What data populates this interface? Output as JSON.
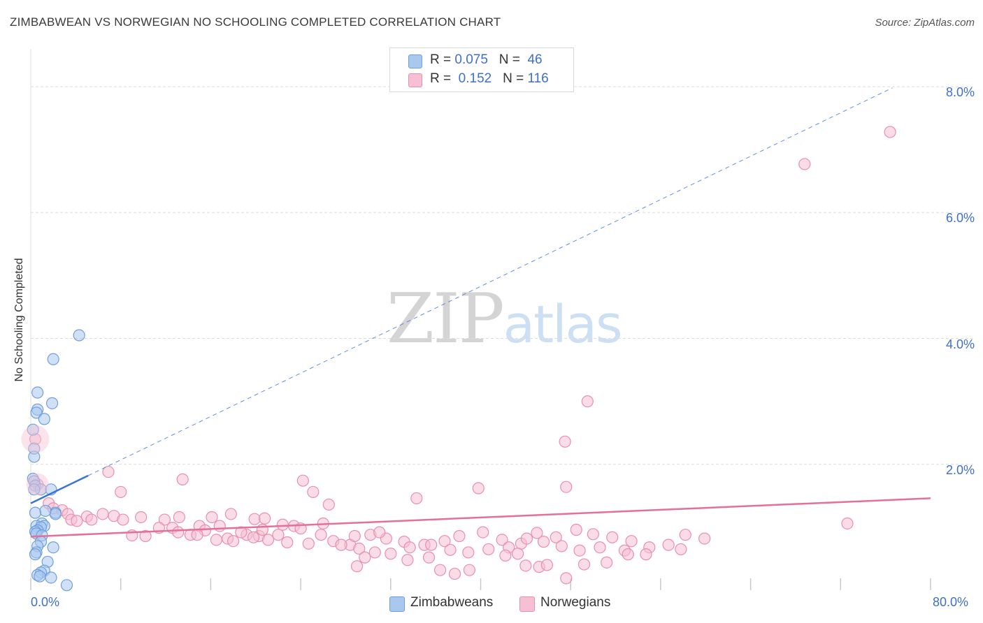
{
  "title": "ZIMBABWEAN VS NORWEGIAN NO SCHOOLING COMPLETED CORRELATION CHART",
  "source": "Source: ZipAtlas.com",
  "watermark": {
    "zip": "ZIP",
    "atlas": "atlas"
  },
  "legend": {
    "rows": [
      {
        "r_label": "R =",
        "r_value": "0.075",
        "n_label": "N =",
        "n_value": "46"
      },
      {
        "r_label": "R =",
        "r_value": "0.152",
        "n_label": "N =",
        "n_value": "116"
      }
    ]
  },
  "bottom_legend": [
    "Zimbabweans",
    "Norwegians"
  ],
  "colors": {
    "blue_fill": "#a9c8ef",
    "blue_stroke": "#6f9fdb",
    "blue_line": "#3a74d4",
    "pink_fill": "#f6c0d2",
    "pink_stroke": "#e98fae",
    "pink_line": "#e46f9b",
    "grid": "#dcdcdc",
    "tick_text": "#3e70c8"
  },
  "chart_data": {
    "type": "scatter",
    "title": "ZIMBABWEAN VS NORWEGIAN NO SCHOOLING COMPLETED CORRELATION CHART",
    "xlabel": "",
    "ylabel": "No Schooling Completed",
    "xlim": [
      0,
      80
    ],
    "ylim": [
      0,
      8.6
    ],
    "x_tick_labels": [
      "0.0%",
      "80.0%"
    ],
    "y_ticks": [
      2,
      4,
      6,
      8
    ],
    "y_tick_labels": [
      "2.0%",
      "4.0%",
      "6.0%",
      "8.0%"
    ],
    "grid": true,
    "series": [
      {
        "name": "Zimbabweans",
        "r": 0.075,
        "n": 46,
        "trend": {
          "x0": 0,
          "y0": 1.38,
          "x1": 5.1,
          "y1": 1.82,
          "dashed_to_x": 76.6,
          "dashed_to_y": 7.98
        },
        "points": [
          [
            4.3,
            4.05
          ],
          [
            2.0,
            3.67
          ],
          [
            0.6,
            3.14
          ],
          [
            1.9,
            2.97
          ],
          [
            0.6,
            2.87
          ],
          [
            0.5,
            2.82
          ],
          [
            1.2,
            2.72
          ],
          [
            0.2,
            2.55
          ],
          [
            0.3,
            2.25
          ],
          [
            0.3,
            2.12
          ],
          [
            0.2,
            1.77
          ],
          [
            0.3,
            1.73
          ],
          [
            0.4,
            1.66
          ],
          [
            0.9,
            1.6
          ],
          [
            1.8,
            1.6
          ],
          [
            0.3,
            1.6
          ],
          [
            2.2,
            1.23
          ],
          [
            2.2,
            1.21
          ],
          [
            1.3,
            1.26
          ],
          [
            0.4,
            1.23
          ],
          [
            1.0,
            1.06
          ],
          [
            0.5,
            1.02
          ],
          [
            1.2,
            1.02
          ],
          [
            0.9,
            1.0
          ],
          [
            0.6,
            0.95
          ],
          [
            0.4,
            0.93
          ],
          [
            0.5,
            0.9
          ],
          [
            1.0,
            0.87
          ],
          [
            0.9,
            0.77
          ],
          [
            0.6,
            0.7
          ],
          [
            2.0,
            0.68
          ],
          [
            0.5,
            0.6
          ],
          [
            0.4,
            0.57
          ],
          [
            1.5,
            0.45
          ],
          [
            1.2,
            0.31
          ],
          [
            0.9,
            0.28
          ],
          [
            0.6,
            0.24
          ],
          [
            0.8,
            0.22
          ],
          [
            1.8,
            0.2
          ],
          [
            3.2,
            0.08
          ]
        ]
      },
      {
        "name": "Norwegians",
        "r": 0.152,
        "n": 116,
        "trend": {
          "x0": 0,
          "y0": 0.85,
          "x1": 80,
          "y1": 1.46
        },
        "points": [
          [
            76.4,
            7.28
          ],
          [
            68.8,
            6.77
          ],
          [
            49.5,
            3.0
          ],
          [
            47.5,
            2.36
          ],
          [
            0.4,
            2.4
          ],
          [
            0.6,
            1.68
          ],
          [
            13.5,
            1.76
          ],
          [
            6.9,
            1.88
          ],
          [
            47.6,
            1.64
          ],
          [
            39.8,
            1.62
          ],
          [
            24.2,
            1.74
          ],
          [
            8.0,
            1.56
          ],
          [
            25.1,
            1.56
          ],
          [
            34.3,
            1.46
          ],
          [
            26.5,
            1.36
          ],
          [
            1.6,
            1.38
          ],
          [
            2.0,
            1.3
          ],
          [
            2.8,
            1.27
          ],
          [
            3.3,
            1.21
          ],
          [
            5.0,
            1.17
          ],
          [
            6.4,
            1.21
          ],
          [
            9.8,
            1.16
          ],
          [
            13.2,
            1.16
          ],
          [
            11.9,
            1.12
          ],
          [
            3.6,
            1.12
          ],
          [
            4.1,
            1.1
          ],
          [
            5.4,
            1.12
          ],
          [
            7.4,
            1.18
          ],
          [
            16.1,
            1.16
          ],
          [
            17.8,
            1.21
          ],
          [
            19.9,
            1.13
          ],
          [
            20.8,
            1.14
          ],
          [
            16.8,
            1.02
          ],
          [
            15.0,
            1.02
          ],
          [
            15.5,
            0.95
          ],
          [
            12.6,
            0.99
          ],
          [
            14.2,
            0.88
          ],
          [
            19.2,
            0.88
          ],
          [
            20.3,
            0.86
          ],
          [
            22.0,
            0.88
          ],
          [
            23.4,
            1.02
          ],
          [
            17.5,
            0.82
          ],
          [
            18.0,
            0.78
          ],
          [
            19.8,
            0.84
          ],
          [
            21.1,
            0.8
          ],
          [
            22.8,
            0.76
          ],
          [
            24.7,
            0.74
          ],
          [
            26.9,
            0.78
          ],
          [
            28.4,
            0.72
          ],
          [
            30.2,
            0.88
          ],
          [
            31.6,
            0.82
          ],
          [
            33.2,
            0.77
          ],
          [
            35.0,
            0.72
          ],
          [
            36.8,
            0.78
          ],
          [
            38.1,
            0.86
          ],
          [
            40.2,
            0.92
          ],
          [
            41.9,
            0.8
          ],
          [
            43.6,
            0.74
          ],
          [
            45.0,
            0.91
          ],
          [
            46.7,
            0.84
          ],
          [
            48.5,
            0.96
          ],
          [
            50.0,
            0.89
          ],
          [
            51.7,
            0.84
          ],
          [
            53.4,
            0.78
          ],
          [
            55.0,
            0.68
          ],
          [
            56.7,
            0.72
          ],
          [
            58.2,
            0.88
          ],
          [
            59.9,
            0.82
          ],
          [
            57.8,
            0.65
          ],
          [
            54.7,
            0.57
          ],
          [
            52.8,
            0.63
          ],
          [
            50.6,
            0.68
          ],
          [
            48.8,
            0.63
          ],
          [
            47.2,
            0.7
          ],
          [
            45.6,
            0.77
          ],
          [
            44.1,
            0.82
          ],
          [
            42.5,
            0.68
          ],
          [
            40.7,
            0.65
          ],
          [
            38.9,
            0.6
          ],
          [
            37.3,
            0.64
          ],
          [
            35.6,
            0.72
          ],
          [
            33.7,
            0.68
          ],
          [
            32.0,
            0.58
          ],
          [
            30.6,
            0.6
          ],
          [
            29.2,
            0.66
          ],
          [
            27.6,
            0.72
          ],
          [
            25.8,
            0.88
          ],
          [
            24.0,
            0.98
          ],
          [
            22.4,
            1.04
          ],
          [
            20.6,
            0.96
          ],
          [
            18.7,
            0.92
          ],
          [
            16.5,
            0.8
          ],
          [
            14.8,
            0.88
          ],
          [
            13.1,
            0.92
          ],
          [
            11.4,
            0.99
          ],
          [
            9.0,
            0.87
          ],
          [
            8.2,
            1.12
          ],
          [
            10.2,
            0.86
          ],
          [
            26.0,
            1.06
          ],
          [
            28.8,
            0.86
          ],
          [
            31.0,
            0.92
          ],
          [
            33.5,
            0.48
          ],
          [
            29.0,
            0.38
          ],
          [
            29.7,
            0.52
          ],
          [
            35.4,
            0.52
          ],
          [
            36.4,
            0.32
          ],
          [
            37.7,
            0.26
          ],
          [
            39.0,
            0.32
          ],
          [
            42.2,
            0.55
          ],
          [
            43.3,
            0.58
          ],
          [
            44.0,
            0.39
          ],
          [
            45.2,
            0.37
          ],
          [
            45.9,
            0.4
          ],
          [
            47.6,
            0.19
          ],
          [
            49.2,
            0.41
          ],
          [
            51.2,
            0.44
          ],
          [
            53.1,
            0.57
          ],
          [
            72.6,
            1.06
          ]
        ]
      }
    ]
  }
}
